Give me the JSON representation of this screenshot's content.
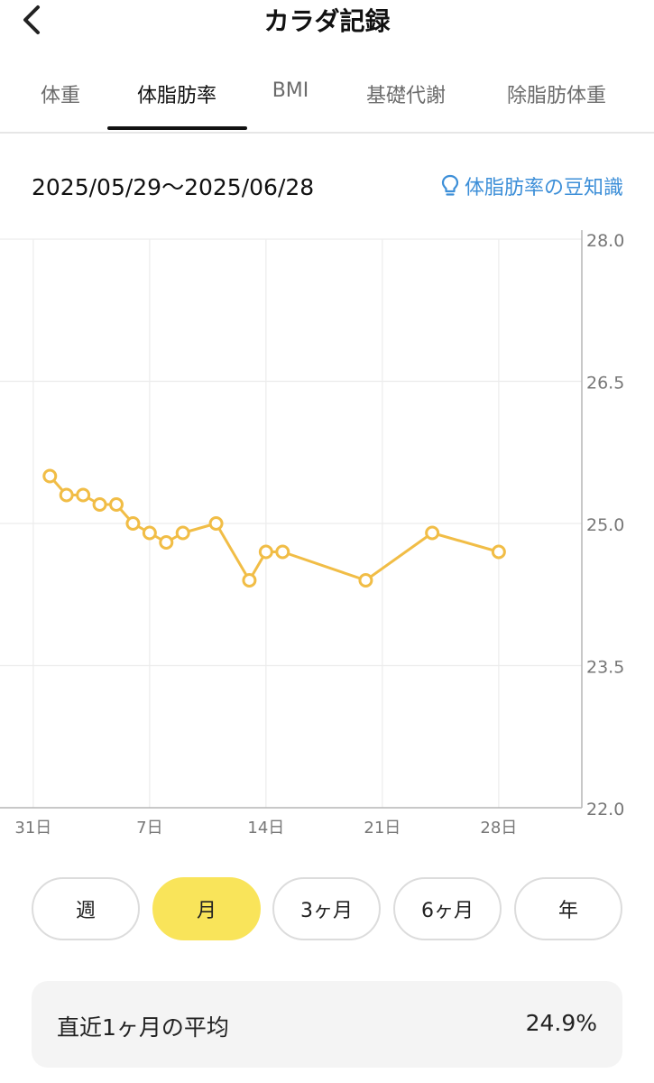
{
  "header": {
    "title": "カラダ記録"
  },
  "tabs": [
    {
      "label": "体重",
      "active": false
    },
    {
      "label": "体脂肪率",
      "active": true
    },
    {
      "label": "BMI",
      "active": false
    },
    {
      "label": "基礎代謝",
      "active": false
    },
    {
      "label": "除脂肪体重",
      "active": false
    }
  ],
  "range": {
    "date_range": "2025/05/29〜2025/06/28",
    "tips_label": "体脂肪率の豆知識",
    "tips_icon": "lightbulb-icon"
  },
  "chart_data": {
    "type": "line",
    "title": "",
    "xlabel": "",
    "ylabel": "",
    "ylim": [
      22.0,
      28.0
    ],
    "y_ticks": [
      "28.0",
      "26.5",
      "25.0",
      "23.5",
      "22.0"
    ],
    "y_tick_values": [
      28.0,
      26.5,
      25.0,
      23.5,
      22.0
    ],
    "x_ticks": [
      "31日",
      "7日",
      "14日",
      "21日",
      "28日"
    ],
    "x_tick_dates": [
      "2025-05-31",
      "2025-06-07",
      "2025-06-14",
      "2025-06-21",
      "2025-06-28"
    ],
    "x_range": [
      "2025-05-29",
      "2025-07-03"
    ],
    "line_color": "#f1bd46",
    "grid": true,
    "series": [
      {
        "name": "",
        "x": [
          "2025-06-01",
          "2025-06-02",
          "2025-06-03",
          "2025-06-04",
          "2025-06-05",
          "2025-06-06",
          "2025-06-07",
          "2025-06-08",
          "2025-06-09",
          "2025-06-11",
          "2025-06-13",
          "2025-06-14",
          "2025-06-15",
          "2025-06-20",
          "2025-06-24",
          "2025-06-28"
        ],
        "values": [
          25.5,
          25.3,
          25.3,
          25.2,
          25.2,
          25.0,
          24.9,
          24.8,
          24.9,
          25.0,
          24.4,
          24.7,
          24.7,
          24.4,
          24.9,
          24.7
        ]
      }
    ]
  },
  "period_buttons": [
    {
      "label": "週",
      "active": false
    },
    {
      "label": "月",
      "active": true
    },
    {
      "label": "3ヶ月",
      "active": false
    },
    {
      "label": "6ヶ月",
      "active": false
    },
    {
      "label": "年",
      "active": false
    }
  ],
  "summary": {
    "label": "直近1ヶ月の平均",
    "value": "24.9%"
  }
}
